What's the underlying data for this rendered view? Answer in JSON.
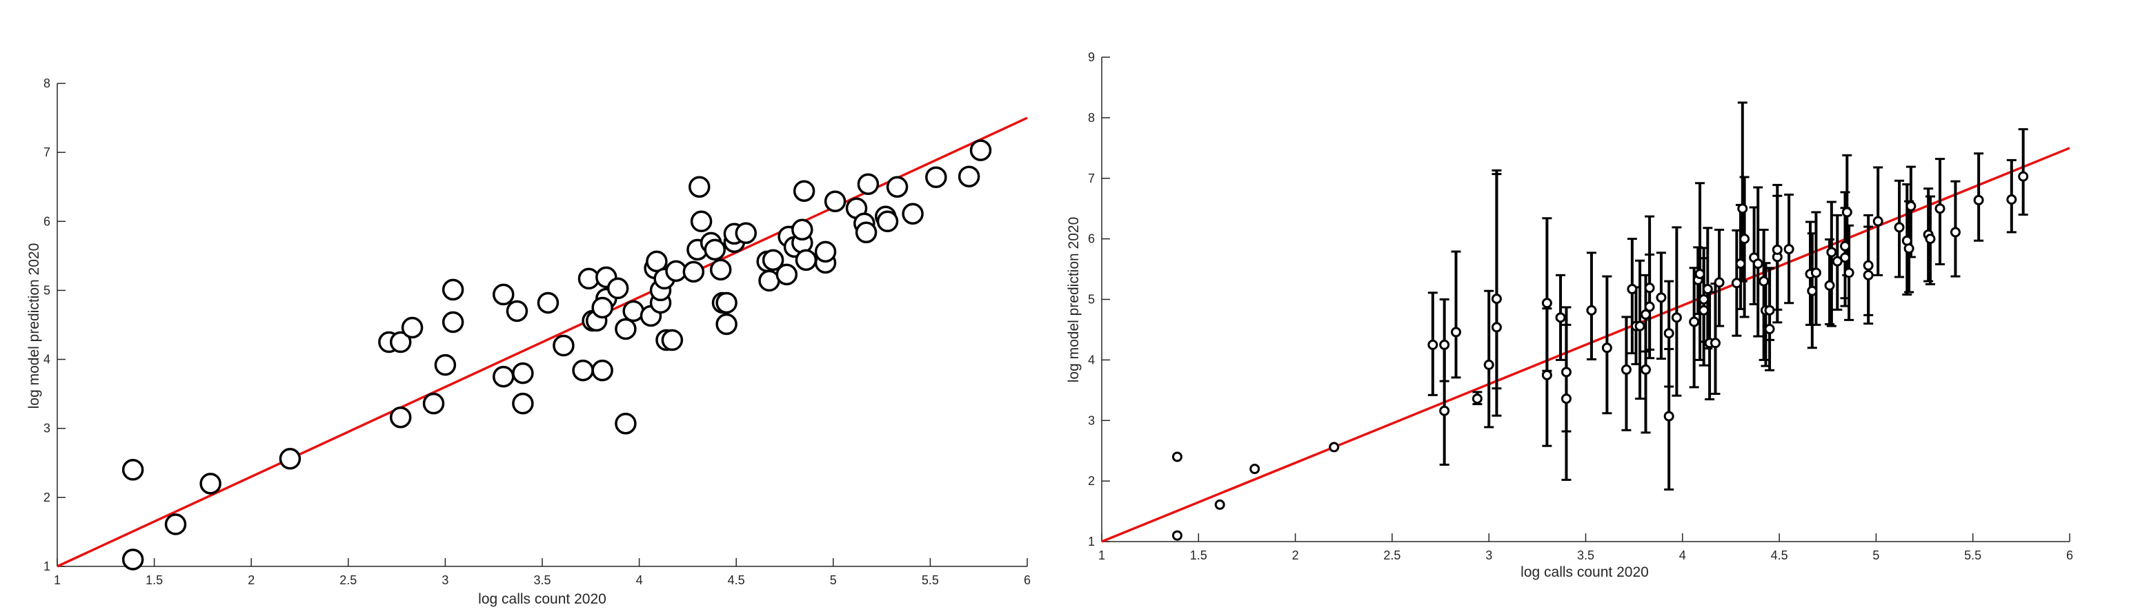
{
  "colors": {
    "fit_line": "#e8110f",
    "marker_edge": "#000000",
    "marker_face": "#ffffff",
    "axis": "#262626",
    "background": "#ffffff"
  },
  "chart_data": [
    {
      "type": "scatter",
      "xlabel": "log calls count 2020",
      "ylabel": "log model prediction 2020",
      "xlim": [
        1,
        6
      ],
      "ylim": [
        1,
        8
      ],
      "xticks": [
        "1",
        "1.5",
        "2",
        "2.5",
        "3",
        "3.5",
        "4",
        "4.5",
        "5",
        "5.5",
        "6"
      ],
      "yticks": [
        "1",
        "2",
        "3",
        "4",
        "5",
        "6",
        "7",
        "8"
      ],
      "grid": false,
      "marker": "large-open-circle",
      "fit_line": {
        "x": [
          1,
          6
        ],
        "y": [
          1,
          7.5
        ]
      },
      "points": [
        {
          "x": 1.39,
          "y": 2.4
        },
        {
          "x": 1.39,
          "y": 1.1
        },
        {
          "x": 1.61,
          "y": 1.61
        },
        {
          "x": 1.79,
          "y": 2.2
        },
        {
          "x": 2.2,
          "y": 2.56
        },
        {
          "x": 2.71,
          "y": 4.25
        },
        {
          "x": 2.77,
          "y": 4.25
        },
        {
          "x": 2.83,
          "y": 4.46
        },
        {
          "x": 2.77,
          "y": 3.16
        },
        {
          "x": 2.94,
          "y": 3.36
        },
        {
          "x": 3.0,
          "y": 3.92
        },
        {
          "x": 3.04,
          "y": 5.01
        },
        {
          "x": 3.04,
          "y": 4.54
        },
        {
          "x": 3.3,
          "y": 4.94
        },
        {
          "x": 3.3,
          "y": 3.75
        },
        {
          "x": 3.37,
          "y": 4.7
        },
        {
          "x": 3.4,
          "y": 3.8
        },
        {
          "x": 3.4,
          "y": 3.36
        },
        {
          "x": 3.53,
          "y": 4.82
        },
        {
          "x": 3.61,
          "y": 4.2
        },
        {
          "x": 3.71,
          "y": 3.84
        },
        {
          "x": 3.74,
          "y": 5.17
        },
        {
          "x": 3.76,
          "y": 4.56
        },
        {
          "x": 3.78,
          "y": 4.56
        },
        {
          "x": 3.81,
          "y": 3.84
        },
        {
          "x": 3.83,
          "y": 4.88
        },
        {
          "x": 3.83,
          "y": 5.19
        },
        {
          "x": 3.81,
          "y": 4.75
        },
        {
          "x": 3.89,
          "y": 5.03
        },
        {
          "x": 3.93,
          "y": 4.44
        },
        {
          "x": 3.93,
          "y": 3.07
        },
        {
          "x": 3.97,
          "y": 4.7
        },
        {
          "x": 4.08,
          "y": 5.32
        },
        {
          "x": 4.09,
          "y": 5.42
        },
        {
          "x": 4.06,
          "y": 4.63
        },
        {
          "x": 4.11,
          "y": 4.82
        },
        {
          "x": 4.11,
          "y": 5.0
        },
        {
          "x": 4.13,
          "y": 5.17
        },
        {
          "x": 4.14,
          "y": 4.28
        },
        {
          "x": 4.17,
          "y": 4.28
        },
        {
          "x": 4.19,
          "y": 5.28
        },
        {
          "x": 4.28,
          "y": 5.27
        },
        {
          "x": 4.3,
          "y": 5.59
        },
        {
          "x": 4.31,
          "y": 6.5
        },
        {
          "x": 4.32,
          "y": 6.0
        },
        {
          "x": 4.37,
          "y": 5.69
        },
        {
          "x": 4.39,
          "y": 5.59
        },
        {
          "x": 4.42,
          "y": 5.3
        },
        {
          "x": 4.43,
          "y": 4.82
        },
        {
          "x": 4.45,
          "y": 4.82
        },
        {
          "x": 4.45,
          "y": 4.51
        },
        {
          "x": 4.49,
          "y": 5.7
        },
        {
          "x": 4.49,
          "y": 5.82
        },
        {
          "x": 4.55,
          "y": 5.83
        },
        {
          "x": 4.66,
          "y": 5.42
        },
        {
          "x": 4.67,
          "y": 5.14
        },
        {
          "x": 4.69,
          "y": 5.44
        },
        {
          "x": 4.76,
          "y": 5.23
        },
        {
          "x": 4.77,
          "y": 5.78
        },
        {
          "x": 4.8,
          "y": 5.63
        },
        {
          "x": 4.84,
          "y": 5.69
        },
        {
          "x": 4.84,
          "y": 5.88
        },
        {
          "x": 4.86,
          "y": 5.44
        },
        {
          "x": 4.85,
          "y": 6.44
        },
        {
          "x": 4.96,
          "y": 5.4
        },
        {
          "x": 4.96,
          "y": 5.56
        },
        {
          "x": 5.01,
          "y": 6.29
        },
        {
          "x": 5.12,
          "y": 6.19
        },
        {
          "x": 5.16,
          "y": 5.97
        },
        {
          "x": 5.17,
          "y": 5.84
        },
        {
          "x": 5.18,
          "y": 6.54
        },
        {
          "x": 5.27,
          "y": 6.07
        },
        {
          "x": 5.28,
          "y": 6.0
        },
        {
          "x": 5.33,
          "y": 6.5
        },
        {
          "x": 5.41,
          "y": 6.11
        },
        {
          "x": 5.53,
          "y": 6.64
        },
        {
          "x": 5.7,
          "y": 6.65
        },
        {
          "x": 5.76,
          "y": 7.03
        }
      ]
    },
    {
      "type": "scatter",
      "xlabel": "log calls count 2020",
      "ylabel": "log model prediction 2020",
      "xlim": [
        1,
        6
      ],
      "ylim": [
        1,
        9
      ],
      "xticks": [
        "1",
        "1.5",
        "2",
        "2.5",
        "3",
        "3.5",
        "4",
        "4.5",
        "5",
        "5.5",
        "6"
      ],
      "yticks": [
        "1",
        "2",
        "3",
        "4",
        "5",
        "6",
        "7",
        "8",
        "9"
      ],
      "grid": false,
      "marker": "small-open-circle-with-error-bars",
      "fit_line": {
        "x": [
          1,
          6
        ],
        "y": [
          1,
          7.5
        ]
      },
      "points": [
        {
          "x": 1.39,
          "y": 2.4,
          "lo": 2.4,
          "hi": 2.4
        },
        {
          "x": 1.39,
          "y": 1.1,
          "lo": 1.1,
          "hi": 1.1
        },
        {
          "x": 1.61,
          "y": 1.61,
          "lo": 1.61,
          "hi": 1.61
        },
        {
          "x": 1.79,
          "y": 2.2,
          "lo": 2.2,
          "hi": 2.2
        },
        {
          "x": 2.2,
          "y": 2.56,
          "lo": 2.56,
          "hi": 2.56
        },
        {
          "x": 2.71,
          "y": 4.25,
          "lo": 3.42,
          "hi": 5.11
        },
        {
          "x": 2.77,
          "y": 4.25,
          "lo": 3.65,
          "hi": 5.0
        },
        {
          "x": 2.83,
          "y": 4.46,
          "lo": 3.71,
          "hi": 5.79
        },
        {
          "x": 2.77,
          "y": 3.16,
          "lo": 2.27,
          "hi": 4.25
        },
        {
          "x": 2.94,
          "y": 3.36,
          "lo": 3.27,
          "hi": 3.47
        },
        {
          "x": 3.0,
          "y": 3.92,
          "lo": 2.89,
          "hi": 5.14
        },
        {
          "x": 3.04,
          "y": 5.01,
          "lo": 3.53,
          "hi": 7.13
        },
        {
          "x": 3.04,
          "y": 4.54,
          "lo": 3.08,
          "hi": 7.07
        },
        {
          "x": 3.3,
          "y": 4.94,
          "lo": 3.82,
          "hi": 6.34
        },
        {
          "x": 3.3,
          "y": 3.75,
          "lo": 2.58,
          "hi": 4.85
        },
        {
          "x": 3.37,
          "y": 4.7,
          "lo": 4.0,
          "hi": 5.4
        },
        {
          "x": 3.4,
          "y": 3.8,
          "lo": 2.82,
          "hi": 4.58
        },
        {
          "x": 3.4,
          "y": 3.36,
          "lo": 2.02,
          "hi": 4.87
        },
        {
          "x": 3.53,
          "y": 4.82,
          "lo": 4.01,
          "hi": 5.77
        },
        {
          "x": 3.61,
          "y": 4.2,
          "lo": 3.12,
          "hi": 5.38
        },
        {
          "x": 3.71,
          "y": 3.84,
          "lo": 2.84,
          "hi": 4.71
        },
        {
          "x": 3.74,
          "y": 5.17,
          "lo": 4.11,
          "hi": 6.0
        },
        {
          "x": 3.76,
          "y": 4.56,
          "lo": 3.93,
          "hi": 5.2
        },
        {
          "x": 3.78,
          "y": 4.56,
          "lo": 3.36,
          "hi": 5.64
        },
        {
          "x": 3.81,
          "y": 3.84,
          "lo": 2.8,
          "hi": 4.75
        },
        {
          "x": 3.83,
          "y": 4.88,
          "lo": 4.03,
          "hi": 5.74
        },
        {
          "x": 3.83,
          "y": 5.19,
          "lo": 4.17,
          "hi": 6.37
        },
        {
          "x": 3.81,
          "y": 4.75,
          "lo": 4.14,
          "hi": 5.4
        },
        {
          "x": 3.89,
          "y": 5.03,
          "lo": 4.02,
          "hi": 5.77
        },
        {
          "x": 3.93,
          "y": 4.44,
          "lo": 3.56,
          "hi": 5.3
        },
        {
          "x": 3.93,
          "y": 3.07,
          "lo": 1.86,
          "hi": 4.18
        },
        {
          "x": 3.97,
          "y": 4.7,
          "lo": 3.41,
          "hi": 6.19
        },
        {
          "x": 4.08,
          "y": 5.32,
          "lo": 4.76,
          "hi": 5.86
        },
        {
          "x": 4.09,
          "y": 5.42,
          "lo": 4.0,
          "hi": 6.92
        },
        {
          "x": 4.06,
          "y": 4.63,
          "lo": 3.55,
          "hi": 5.52
        },
        {
          "x": 4.11,
          "y": 4.82,
          "lo": 3.91,
          "hi": 5.68
        },
        {
          "x": 4.11,
          "y": 5.0,
          "lo": 4.3,
          "hi": 5.85
        },
        {
          "x": 4.13,
          "y": 5.17,
          "lo": 4.19,
          "hi": 6.18
        },
        {
          "x": 4.14,
          "y": 4.28,
          "lo": 3.35,
          "hi": 5.12
        },
        {
          "x": 4.17,
          "y": 4.28,
          "lo": 3.44,
          "hi": 5.26
        },
        {
          "x": 4.19,
          "y": 5.28,
          "lo": 4.56,
          "hi": 6.15
        },
        {
          "x": 4.28,
          "y": 5.27,
          "lo": 4.4,
          "hi": 6.14
        },
        {
          "x": 4.3,
          "y": 5.59,
          "lo": 4.84,
          "hi": 6.56
        },
        {
          "x": 4.31,
          "y": 6.5,
          "lo": 5.3,
          "hi": 8.25
        },
        {
          "x": 4.32,
          "y": 6.0,
          "lo": 4.71,
          "hi": 7.02
        },
        {
          "x": 4.37,
          "y": 5.69,
          "lo": 4.92,
          "hi": 6.52
        },
        {
          "x": 4.39,
          "y": 5.59,
          "lo": 4.39,
          "hi": 6.85
        },
        {
          "x": 4.42,
          "y": 5.3,
          "lo": 4.0,
          "hi": 6.15
        },
        {
          "x": 4.43,
          "y": 4.82,
          "lo": 3.9,
          "hi": 5.6
        },
        {
          "x": 4.45,
          "y": 4.82,
          "lo": 4.33,
          "hi": 5.52
        },
        {
          "x": 4.45,
          "y": 4.51,
          "lo": 3.83,
          "hi": 5.51
        },
        {
          "x": 4.49,
          "y": 5.7,
          "lo": 4.62,
          "hi": 6.89
        },
        {
          "x": 4.49,
          "y": 5.82,
          "lo": 4.83,
          "hi": 6.71
        },
        {
          "x": 4.55,
          "y": 5.83,
          "lo": 4.94,
          "hi": 6.73
        },
        {
          "x": 4.66,
          "y": 5.42,
          "lo": 4.58,
          "hi": 6.28
        },
        {
          "x": 4.67,
          "y": 5.14,
          "lo": 4.2,
          "hi": 6.09
        },
        {
          "x": 4.69,
          "y": 5.44,
          "lo": 4.58,
          "hi": 6.44
        },
        {
          "x": 4.76,
          "y": 5.23,
          "lo": 4.59,
          "hi": 5.99
        },
        {
          "x": 4.77,
          "y": 5.78,
          "lo": 4.56,
          "hi": 6.61
        },
        {
          "x": 4.8,
          "y": 5.63,
          "lo": 4.83,
          "hi": 6.39
        },
        {
          "x": 4.84,
          "y": 5.69,
          "lo": 4.89,
          "hi": 6.51
        },
        {
          "x": 4.84,
          "y": 5.88,
          "lo": 5.02,
          "hi": 6.77
        },
        {
          "x": 4.86,
          "y": 5.44,
          "lo": 4.66,
          "hi": 6.22
        },
        {
          "x": 4.85,
          "y": 6.44,
          "lo": 5.4,
          "hi": 7.38
        },
        {
          "x": 4.96,
          "y": 5.4,
          "lo": 4.6,
          "hi": 6.2
        },
        {
          "x": 4.96,
          "y": 5.56,
          "lo": 4.74,
          "hi": 6.39
        },
        {
          "x": 5.01,
          "y": 6.29,
          "lo": 5.4,
          "hi": 7.18
        },
        {
          "x": 5.12,
          "y": 6.19,
          "lo": 5.37,
          "hi": 6.96
        },
        {
          "x": 5.16,
          "y": 5.97,
          "lo": 5.08,
          "hi": 6.9
        },
        {
          "x": 5.17,
          "y": 5.84,
          "lo": 5.12,
          "hi": 6.62
        },
        {
          "x": 5.18,
          "y": 6.54,
          "lo": 5.7,
          "hi": 7.19
        },
        {
          "x": 5.27,
          "y": 6.07,
          "lo": 5.3,
          "hi": 6.83
        },
        {
          "x": 5.28,
          "y": 6.0,
          "lo": 5.25,
          "hi": 6.7
        },
        {
          "x": 5.33,
          "y": 6.5,
          "lo": 5.58,
          "hi": 7.32
        },
        {
          "x": 5.41,
          "y": 6.11,
          "lo": 5.38,
          "hi": 6.95
        },
        {
          "x": 5.53,
          "y": 6.64,
          "lo": 5.97,
          "hi": 7.41
        },
        {
          "x": 5.7,
          "y": 6.65,
          "lo": 6.11,
          "hi": 7.3
        },
        {
          "x": 5.76,
          "y": 7.03,
          "lo": 6.4,
          "hi": 7.81
        }
      ]
    }
  ]
}
